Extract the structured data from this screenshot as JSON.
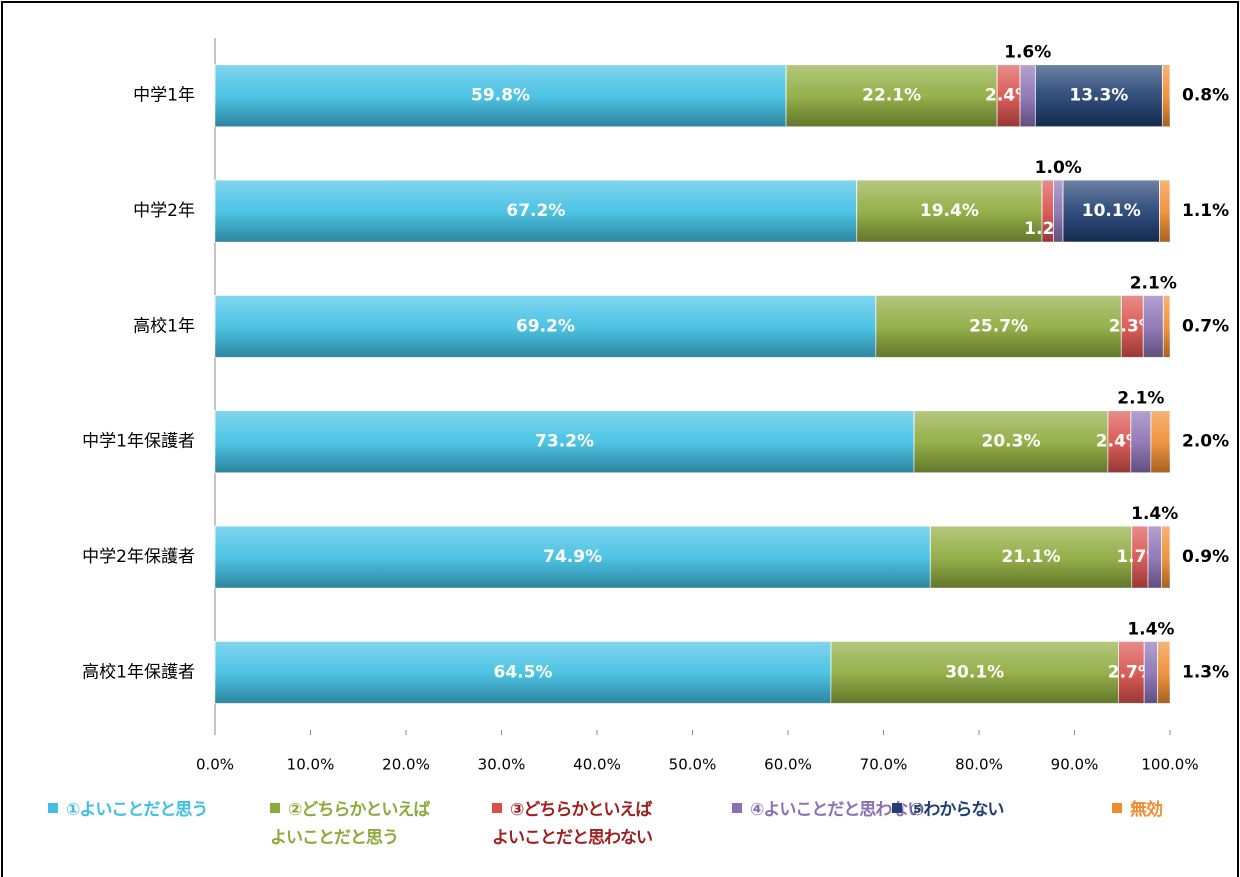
{
  "chart_data": {
    "type": "stacked-bar-horizontal",
    "categories": [
      "中学1年",
      "中学2年",
      "高校1年",
      "中学1年保護者",
      "中学2年保護者",
      "高校1年保護者"
    ],
    "series": [
      {
        "name": "①よいことだと思う",
        "color": "#3fbfe3",
        "values": [
          59.8,
          67.2,
          69.2,
          73.2,
          74.9,
          64.5
        ],
        "value_labels": [
          "59.8%",
          "67.2%",
          "69.2%",
          "73.2%",
          "74.9%",
          "64.5%"
        ]
      },
      {
        "name": "②どちらかといえば\nよいことだと思う",
        "color": "#8daa3c",
        "values": [
          22.1,
          19.4,
          25.7,
          20.3,
          21.1,
          30.1
        ],
        "value_labels": [
          "22.1%",
          "19.4%",
          "25.7%",
          "20.3%",
          "21.1%",
          "30.1%"
        ]
      },
      {
        "name": "③どちらかといえば\nよいことだと思わない",
        "color": "#d9504c",
        "values": [
          2.4,
          1.2,
          2.3,
          2.4,
          1.7,
          2.7
        ],
        "value_labels": [
          "2.4%",
          "1.2%",
          "2.3%",
          "2.4%",
          "1.7%",
          "2.7%"
        ]
      },
      {
        "name": "④よいことだと思わない",
        "color": "#8b70b4",
        "values": [
          1.6,
          1.0,
          2.1,
          2.1,
          1.4,
          1.4
        ],
        "value_labels": [
          "1.6%",
          "1.0%",
          "2.1%",
          "2.1%",
          "1.4%",
          "1.4%"
        ]
      },
      {
        "name": "⑤わからない",
        "color": "#1f3f72",
        "values": [
          13.3,
          10.1,
          0,
          0,
          0,
          0
        ],
        "value_labels": [
          "13.3%",
          "10.1%",
          null,
          null,
          null,
          null
        ]
      },
      {
        "name": "無効",
        "color": "#f08c30",
        "values": [
          0.8,
          1.1,
          0.7,
          2.0,
          0.9,
          1.3
        ],
        "value_labels": [
          "0.8%",
          "1.1%",
          "0.7%",
          "2.0%",
          "0.9%",
          "1.3%"
        ]
      }
    ],
    "xlim": [
      0,
      100
    ],
    "xticks": [
      {
        "value": 0,
        "label": "0.0%"
      },
      {
        "value": 10,
        "label": "10.0%"
      },
      {
        "value": 20,
        "label": "20.0%"
      },
      {
        "value": 30,
        "label": "30.0%"
      },
      {
        "value": 40,
        "label": "40.0%"
      },
      {
        "value": 50,
        "label": "50.0%"
      },
      {
        "value": 60,
        "label": "60.0%"
      },
      {
        "value": 70,
        "label": "70.0%"
      },
      {
        "value": 80,
        "label": "80.0%"
      },
      {
        "value": 90,
        "label": "90.0%"
      },
      {
        "value": 100,
        "label": "100.0%"
      }
    ],
    "legend": "bottom"
  }
}
